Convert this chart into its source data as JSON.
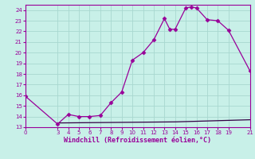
{
  "xlabel": "Windchill (Refroidissement éolien,°C)",
  "bg_color": "#c8f0e8",
  "grid_color": "#a8d8d0",
  "line_color": "#990099",
  "line2_color": "#330044",
  "xlim": [
    0,
    21
  ],
  "ylim": [
    13,
    24.5
  ],
  "yticks": [
    13,
    14,
    15,
    16,
    17,
    18,
    19,
    20,
    21,
    22,
    23,
    24
  ],
  "xticks": [
    0,
    3,
    4,
    5,
    6,
    7,
    8,
    9,
    10,
    11,
    12,
    13,
    14,
    15,
    16,
    17,
    18,
    19,
    21
  ],
  "curve1_x": [
    0,
    3,
    4,
    5,
    6,
    7,
    8,
    9,
    10,
    11,
    12,
    13,
    13.5,
    14,
    15,
    15.5,
    16,
    17,
    18,
    19,
    21
  ],
  "curve1_y": [
    15.9,
    13.3,
    14.2,
    14.0,
    14.0,
    14.1,
    15.3,
    16.3,
    19.3,
    20.0,
    21.2,
    23.2,
    22.2,
    22.2,
    24.2,
    24.3,
    24.2,
    23.1,
    23.0,
    22.1,
    18.3
  ],
  "curve2_x": [
    3,
    14,
    21
  ],
  "curve2_y": [
    13.4,
    13.5,
    13.7
  ],
  "markersize": 2.5,
  "tick_fontsize": 5,
  "label_fontsize": 6
}
